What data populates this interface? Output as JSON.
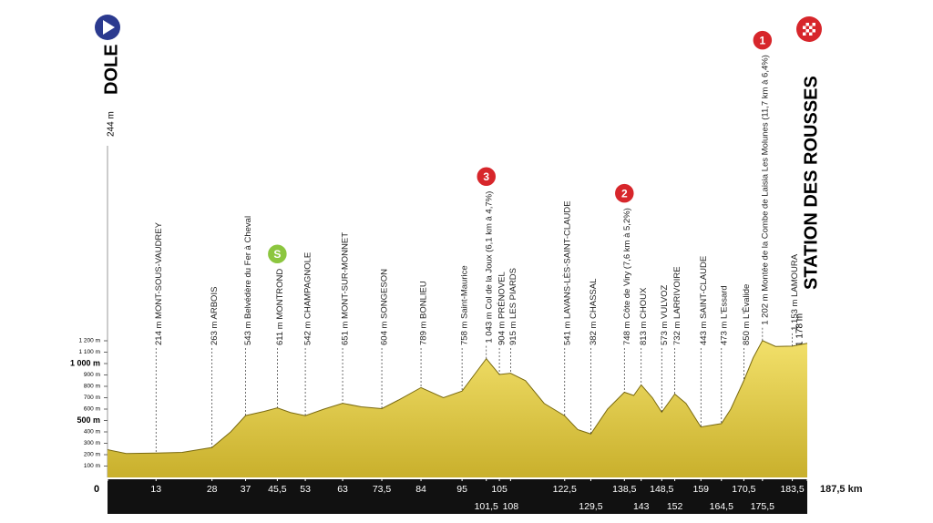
{
  "chart_data": {
    "type": "area",
    "start": {
      "altitude": "244 m",
      "name": "DOLE"
    },
    "finish": {
      "altitude": "1 178 m",
      "name": "STATION DES ROUSSES"
    },
    "x": [
      0,
      5,
      13,
      20,
      28,
      33,
      37,
      42,
      45.5,
      49,
      53,
      58,
      63,
      68,
      73.5,
      78,
      84,
      90,
      95,
      101.5,
      105,
      108,
      112,
      117,
      122.5,
      126,
      129.5,
      134,
      138.5,
      141,
      143,
      146,
      148.5,
      152,
      155,
      159,
      164.5,
      167,
      170.5,
      173,
      175.5,
      179,
      183.5,
      187.5
    ],
    "values": [
      244,
      210,
      214,
      220,
      263,
      400,
      543,
      580,
      611,
      570,
      542,
      600,
      651,
      620,
      604,
      680,
      789,
      700,
      758,
      1043,
      904,
      915,
      850,
      650,
      541,
      420,
      382,
      600,
      748,
      720,
      813,
      700,
      573,
      732,
      650,
      443,
      473,
      600,
      850,
      1050,
      1202,
      1150,
      1153,
      1178
    ],
    "color": "#e9d24a",
    "xlim": [
      0,
      187.5
    ],
    "xticks": [
      0,
      13,
      28,
      37,
      {
        "value": 45.5,
        "label": "45,5"
      },
      53,
      63,
      {
        "value": 73.5,
        "label": "73,5"
      },
      84,
      95,
      {
        "value": 101.5,
        "label": "101,5"
      },
      105,
      108,
      {
        "value": 122.5,
        "label": "122,5"
      },
      {
        "value": 129.5,
        "label": "129,5"
      },
      {
        "value": 138.5,
        "label": "138,5"
      },
      143,
      {
        "value": 148.5,
        "label": "148,5"
      },
      152,
      159,
      {
        "value": 164.5,
        "label": "164,5"
      },
      {
        "value": 170.5,
        "label": "170,5"
      },
      {
        "value": 175.5,
        "label": "175,5"
      },
      {
        "value": 183.5,
        "label": "183,5"
      },
      {
        "value": 187.5,
        "label": "187,5 km"
      }
    ],
    "ylim": [
      0,
      1200
    ],
    "yticks": [
      {
        "value": 100,
        "label": "100 m"
      },
      {
        "value": 200,
        "label": "200 m"
      },
      {
        "value": 300,
        "label": "300 m"
      },
      {
        "value": 400,
        "label": "400 m"
      },
      {
        "value": 500,
        "label": "500 m"
      },
      {
        "value": 600,
        "label": "600 m"
      },
      {
        "value": 700,
        "label": "700 m"
      },
      {
        "value": 800,
        "label": "800 m"
      },
      {
        "value": 900,
        "label": "900 m"
      },
      {
        "value": 1000,
        "label": "1 000 m"
      },
      {
        "value": 1100,
        "label": "1 100 m"
      },
      {
        "value": 1200,
        "label": "1 200 m"
      }
    ],
    "waypoints": [
      {
        "x": 13,
        "label": "214 m MONT-SOUS-VAUDREY"
      },
      {
        "x": 28,
        "label": "263 m ARBOIS"
      },
      {
        "x": 37,
        "label": "543 m Belvédère du Fer à Cheval"
      },
      {
        "x": 45.5,
        "label": "611 m MONTROND"
      },
      {
        "x": 53,
        "label": "542 m CHAMPAGNOLE"
      },
      {
        "x": 63,
        "label": "651 m MONT-SUR-MONNET"
      },
      {
        "x": 73.5,
        "label": "604 m SONGESON"
      },
      {
        "x": 84,
        "label": "789 m BONLIEU"
      },
      {
        "x": 95,
        "label": "758 m Saint-Maurice"
      },
      {
        "x": 101.5,
        "label": "1 043 m Col de la Joux (6,1 km à 4,7%)"
      },
      {
        "x": 105,
        "label": "904 m PRÉNOVEL"
      },
      {
        "x": 108,
        "label": "915 m LES PIARDS"
      },
      {
        "x": 122.5,
        "label": "541 m LAVANS-LÈS-SAINT-CLAUDE"
      },
      {
        "x": 129.5,
        "label": "382 m CHASSAL"
      },
      {
        "x": 138.5,
        "label": "748 m Côte de Viry (7,6 km à 5,2%)"
      },
      {
        "x": 143,
        "label": "813 m CHOUX"
      },
      {
        "x": 148.5,
        "label": "573 m VULVOZ"
      },
      {
        "x": 152,
        "label": "732 m LARRIVOIRE"
      },
      {
        "x": 159,
        "label": "443 m SAINT-CLAUDE"
      },
      {
        "x": 164.5,
        "label": "473 m L'Essard"
      },
      {
        "x": 170.5,
        "label": "850 m L'Évalide"
      },
      {
        "x": 175.5,
        "label": "1 202 m Montée de la Combe de Laisia Les Molunes (11,7 km à 6,4%)"
      },
      {
        "x": 183.5,
        "label": "1 153 m LAMOURA"
      }
    ],
    "badges": [
      {
        "x": 45.5,
        "text": "S",
        "color": "#8cc63f"
      },
      {
        "x": 101.5,
        "text": "3",
        "color": "#d7262b"
      },
      {
        "x": 138.5,
        "text": "2",
        "color": "#d7262b"
      },
      {
        "x": 175.5,
        "text": "1",
        "color": "#d7262b"
      }
    ]
  }
}
